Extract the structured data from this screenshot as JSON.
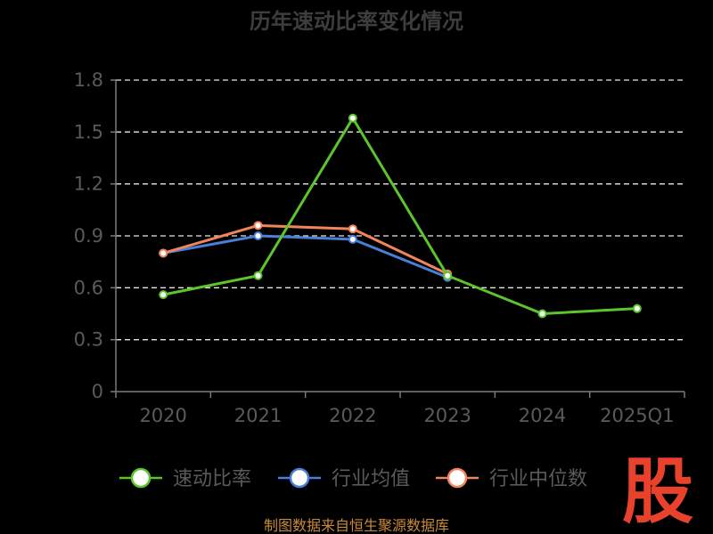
{
  "chart_data": {
    "type": "line",
    "title": "历年速动比率变化情况",
    "categories": [
      "2020",
      "2021",
      "2022",
      "2023",
      "2024",
      "2025Q1"
    ],
    "y_ticks": [
      "0",
      "0.3",
      "0.6",
      "0.9",
      "1.2",
      "1.5",
      "1.8"
    ],
    "ylim": [
      0,
      1.8
    ],
    "grid": true,
    "legend_position": "bottom",
    "series": [
      {
        "name": "速动比率",
        "color": "#5cc52b",
        "values": [
          0.56,
          0.67,
          1.58,
          0.67,
          0.45,
          0.48
        ]
      },
      {
        "name": "行业均值",
        "color": "#4a7fd8",
        "values": [
          0.8,
          0.9,
          0.88,
          0.66,
          null,
          null
        ]
      },
      {
        "name": "行业中位数",
        "color": "#f2845c",
        "values": [
          0.8,
          0.96,
          0.94,
          0.68,
          null,
          null
        ]
      }
    ]
  },
  "source_text": "制图数据来自恒生聚源数据库",
  "watermark": {
    "text": "股",
    "color": "#e8412c"
  }
}
